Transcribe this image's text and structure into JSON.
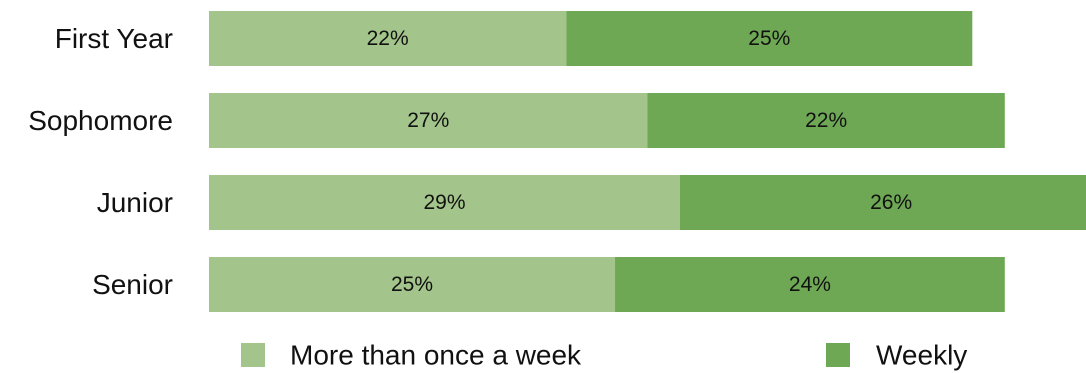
{
  "chart_data": {
    "type": "bar",
    "orientation": "horizontal",
    "stacked": true,
    "categories": [
      "First Year",
      "Sophomore",
      "Junior",
      "Senior"
    ],
    "series": [
      {
        "name": "More than once a week",
        "values": [
          22,
          27,
          29,
          25
        ],
        "labels": [
          "22%",
          "27%",
          "29%",
          "25%"
        ],
        "color": "#a3c48a"
      },
      {
        "name": "Weekly",
        "values": [
          25,
          22,
          26,
          24
        ],
        "labels": [
          "25%",
          "22%",
          "26%",
          "24%"
        ],
        "color": "#6ea855"
      }
    ],
    "value_unit": "%",
    "xlim": [
      0,
      54
    ],
    "grid": false,
    "legend_position": "bottom",
    "title": "",
    "xlabel": "",
    "ylabel": ""
  }
}
